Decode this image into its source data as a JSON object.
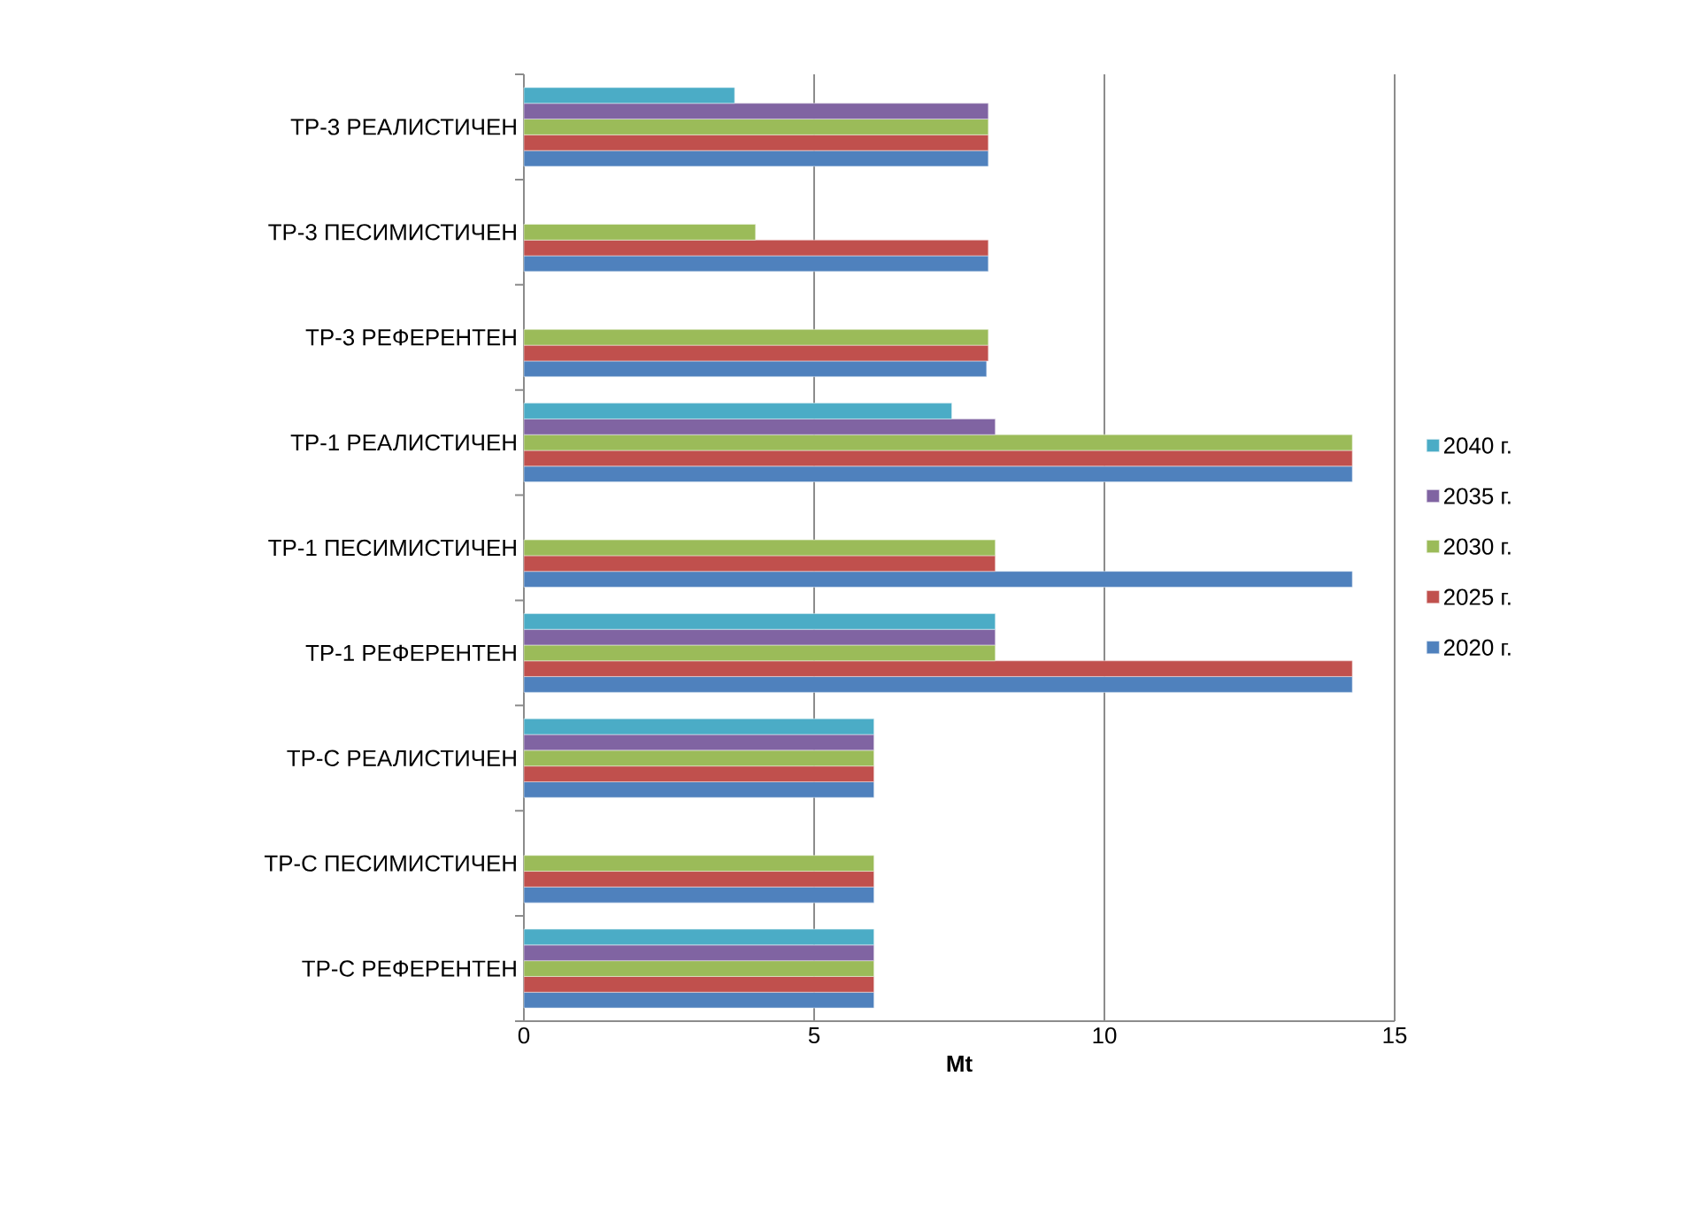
{
  "chart_data": {
    "type": "bar",
    "orientation": "horizontal",
    "xlabel": "Mt",
    "categories": [
      "ТР-3 РЕАЛИСТИЧЕН",
      "ТР-3 ПЕСИМИСТИЧЕН",
      "ТР-3 РЕФЕРЕНТЕН",
      "ТР-1 РЕАЛИСТИЧЕН",
      "ТР-1 ПЕСИМИСТИЧЕН",
      "ТР-1 РЕФЕРЕНТЕН",
      "ТР-С РЕАЛИСТИЧЕН",
      "ТР-С ПЕСИМИСТИЧЕН",
      "ТР-С РЕФЕРЕНТЕН"
    ],
    "series": [
      {
        "name": "2020 г.",
        "color": "#4f81bd",
        "values": [
          8.0,
          8.0,
          7.97,
          14.27,
          14.27,
          14.27,
          6.03,
          6.03,
          6.03
        ]
      },
      {
        "name": "2025 г.",
        "color": "#c0504d",
        "values": [
          8.0,
          8.0,
          8.0,
          14.27,
          8.12,
          14.27,
          6.03,
          6.03,
          6.03
        ]
      },
      {
        "name": "2030 г.",
        "color": "#9bbb59",
        "values": [
          8.0,
          3.99,
          8.0,
          14.27,
          8.12,
          8.12,
          6.03,
          6.03,
          6.03
        ]
      },
      {
        "name": "2035 г.",
        "color": "#8064a2",
        "values": [
          8.0,
          null,
          null,
          8.12,
          null,
          8.12,
          6.03,
          null,
          6.03
        ]
      },
      {
        "name": "2040 г.",
        "color": "#4bacc6",
        "values": [
          3.63,
          null,
          null,
          7.37,
          null,
          8.12,
          6.03,
          null,
          6.03
        ]
      }
    ],
    "xlim": [
      0,
      15
    ],
    "xticks": [
      0,
      5,
      10,
      15
    ],
    "grid": "x",
    "legend": "right"
  }
}
